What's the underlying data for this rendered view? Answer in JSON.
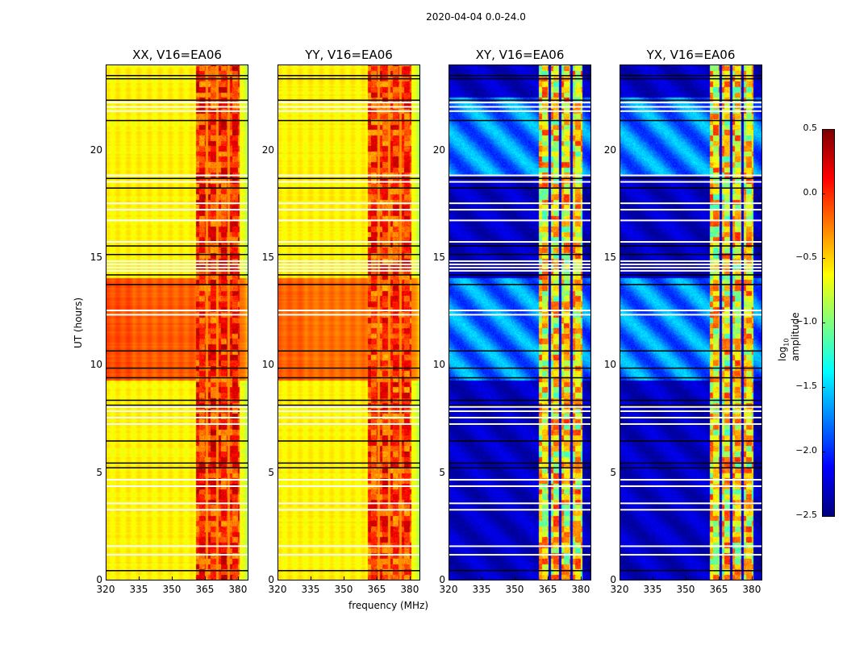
{
  "suptitle": "2020-04-04 0.0-24.0",
  "colorbar": {
    "label": "log10 amplitude",
    "label_main": "log",
    "label_sub": "10",
    "label_tail": " amplitude",
    "range": [
      -2.5,
      0.5
    ],
    "ticks": [
      "0.5",
      "0.0",
      "−0.5",
      "−1.0",
      "−1.5",
      "−2.0",
      "−2.5"
    ],
    "tick_values": [
      0.5,
      0.0,
      -0.5,
      -1.0,
      -1.5,
      -2.0,
      -2.5
    ],
    "colormap": "jet"
  },
  "chart_data": {
    "type": "heatmap",
    "title": "2020-04-04 0.0-24.0",
    "xlabel": "frequency (MHz)",
    "ylabel": "UT (hours)",
    "xlim": [
      320,
      384.8
    ],
    "ylim": [
      0,
      24
    ],
    "xticks": [
      "320",
      "335",
      "350",
      "365",
      "380"
    ],
    "xtick_values": [
      320,
      335,
      350,
      365,
      380
    ],
    "yticks": [
      "0",
      "5",
      "10",
      "15",
      "20"
    ],
    "ytick_values": [
      0,
      5,
      10,
      15,
      20
    ],
    "flagged_hours_white": [
      14.45,
      14.6,
      14.75,
      14.9,
      22.1,
      22.3,
      21.9,
      18.9,
      18.6,
      17.6,
      17.3,
      16.8,
      15.8,
      12.6,
      12.4,
      8.1,
      7.9,
      7.6,
      7.3,
      4.7,
      4.4,
      3.6,
      3.3,
      1.6,
      1.2
    ],
    "flagged_hours_black": [
      23.55,
      23.4,
      22.4,
      21.45,
      18.75,
      18.3,
      15.6,
      15.2,
      14.25,
      13.8,
      10.7,
      9.9,
      9.45,
      8.4,
      8.17,
      6.5,
      5.47,
      5.25,
      0.45
    ],
    "rfi_band_mhz": [
      361,
      381
    ],
    "rfi_gaps_mhz": [
      365.8,
      370.9,
      376.0
    ],
    "panels": [
      {
        "title": "XX, V16=EA06",
        "base_level": -0.6,
        "edge_level": -0.9,
        "active_hours": [
          [
            9.3,
            14.1
          ]
        ],
        "active_level": -0.15,
        "rfi_level": 0.0
      },
      {
        "title": "YY, V16=EA06",
        "base_level": -0.6,
        "edge_level": -0.9,
        "active_hours": [
          [
            9.3,
            14.1
          ]
        ],
        "active_level": -0.2,
        "rfi_level": -0.05
      },
      {
        "title": "XY, V16=EA06",
        "base_level": -2.3,
        "edge_level": -2.4,
        "active_hours": [
          [
            9.3,
            14.1
          ],
          [
            18.9,
            22.5
          ]
        ],
        "active_level": -1.75,
        "rfi_level": -0.6
      },
      {
        "title": "YX, V16=EA06",
        "base_level": -2.3,
        "edge_level": -2.4,
        "active_hours": [
          [
            9.3,
            14.1
          ],
          [
            18.9,
            22.5
          ]
        ],
        "active_level": -1.75,
        "rfi_level": -0.6
      }
    ]
  }
}
